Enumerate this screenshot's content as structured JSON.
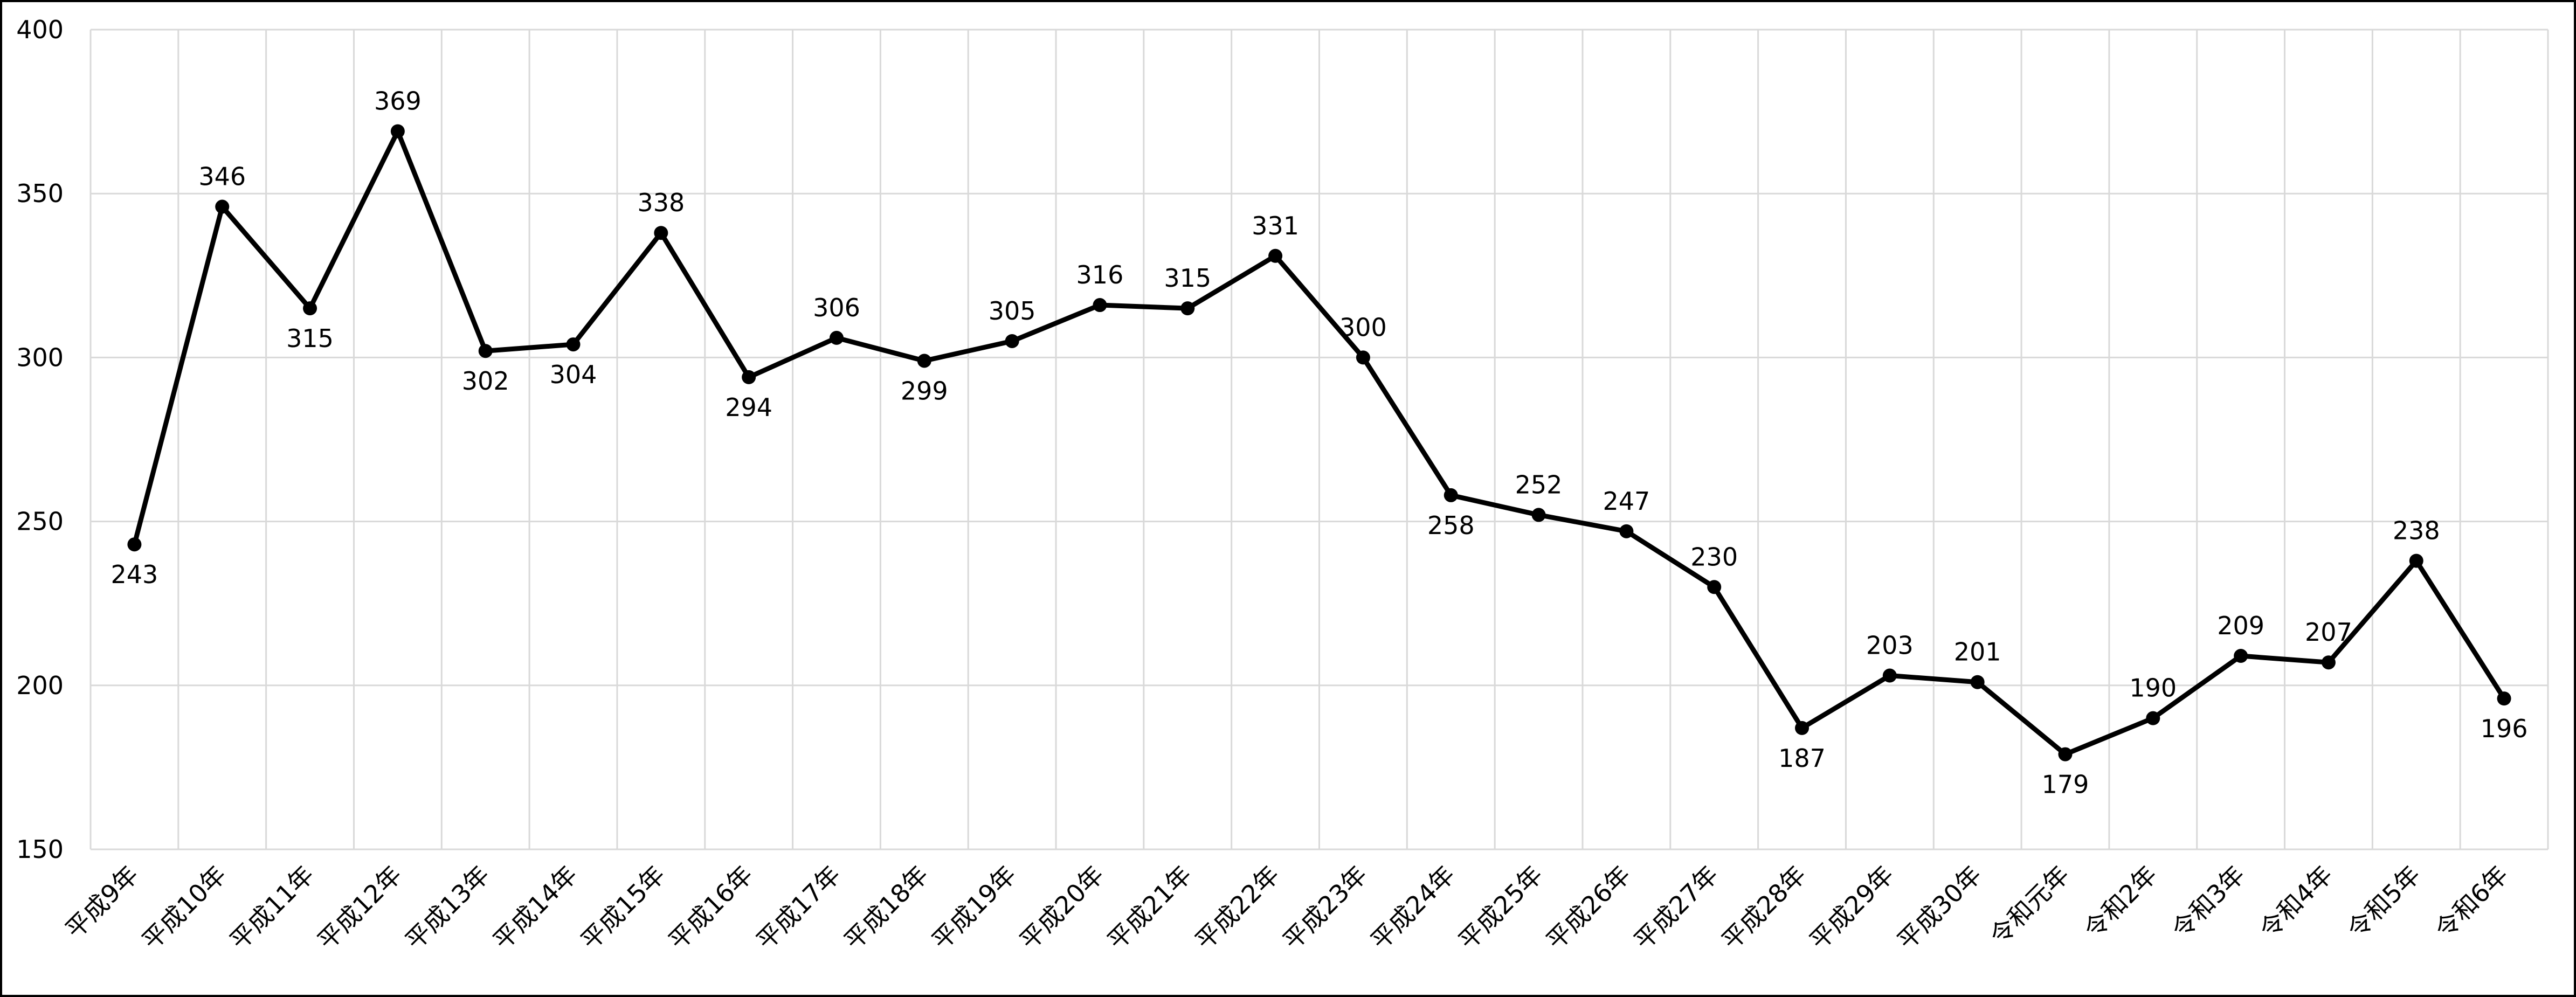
{
  "chart_data": {
    "type": "line",
    "categories": [
      "平成9年",
      "平成10年",
      "平成11年",
      "平成12年",
      "平成13年",
      "平成14年",
      "平成15年",
      "平成16年",
      "平成17年",
      "平成18年",
      "平成19年",
      "平成20年",
      "平成21年",
      "平成22年",
      "平成23年",
      "平成24年",
      "平成25年",
      "平成26年",
      "平成27年",
      "平成28年",
      "平成29年",
      "平成30年",
      "令和元年",
      "令和2年",
      "令和3年",
      "令和4年",
      "令和5年",
      "令和6年"
    ],
    "values": [
      243,
      346,
      315,
      369,
      302,
      304,
      338,
      294,
      306,
      299,
      305,
      316,
      315,
      331,
      300,
      258,
      252,
      247,
      230,
      187,
      203,
      201,
      179,
      190,
      209,
      207,
      238,
      196
    ],
    "color": "#000000",
    "ylim": [
      150,
      400
    ],
    "yticks": [
      150,
      200,
      250,
      300,
      350,
      400
    ],
    "grid": true
  }
}
